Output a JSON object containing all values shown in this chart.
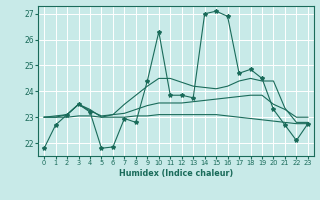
{
  "xlabel": "Humidex (Indice chaleur)",
  "xlim": [
    -0.5,
    23.5
  ],
  "ylim": [
    21.5,
    27.3
  ],
  "yticks": [
    22,
    23,
    24,
    25,
    26,
    27
  ],
  "xticks": [
    0,
    1,
    2,
    3,
    4,
    5,
    6,
    7,
    8,
    9,
    10,
    11,
    12,
    13,
    14,
    15,
    16,
    17,
    18,
    19,
    20,
    21,
    22,
    23
  ],
  "bg_color": "#c8eae8",
  "grid_color": "#ffffff",
  "line_color": "#1a6b5a",
  "lines": [
    {
      "x": [
        0,
        1,
        2,
        3,
        4,
        5,
        6,
        7,
        8,
        9,
        10,
        11,
        12,
        13,
        14,
        15,
        16,
        17,
        18,
        19,
        20,
        21,
        22,
        23
      ],
      "y": [
        21.8,
        22.7,
        23.1,
        23.5,
        23.2,
        21.8,
        21.85,
        22.95,
        22.8,
        24.4,
        26.3,
        23.85,
        23.85,
        23.75,
        27.0,
        27.1,
        26.9,
        24.7,
        24.85,
        24.5,
        23.3,
        22.7,
        22.1,
        22.75
      ],
      "marker": "*",
      "markersize": 3.0,
      "lw": 0.8
    },
    {
      "x": [
        0,
        1,
        2,
        3,
        4,
        5,
        6,
        7,
        8,
        9,
        10,
        11,
        12,
        13,
        14,
        15,
        16,
        17,
        18,
        19,
        20,
        21,
        22,
        23
      ],
      "y": [
        23.0,
        23.0,
        23.0,
        23.05,
        23.05,
        23.0,
        23.0,
        23.0,
        23.05,
        23.05,
        23.1,
        23.1,
        23.1,
        23.1,
        23.1,
        23.1,
        23.05,
        23.0,
        22.95,
        22.9,
        22.85,
        22.8,
        22.75,
        22.75
      ],
      "marker": null,
      "markersize": 0,
      "lw": 0.8
    },
    {
      "x": [
        0,
        1,
        2,
        3,
        4,
        5,
        6,
        7,
        8,
        9,
        10,
        11,
        12,
        13,
        14,
        15,
        16,
        17,
        18,
        19,
        20,
        21,
        22,
        23
      ],
      "y": [
        23.0,
        23.0,
        23.1,
        23.5,
        23.25,
        23.05,
        23.1,
        23.15,
        23.3,
        23.45,
        23.55,
        23.55,
        23.55,
        23.6,
        23.65,
        23.7,
        23.75,
        23.8,
        23.85,
        23.85,
        23.5,
        23.3,
        23.0,
        23.0
      ],
      "marker": null,
      "markersize": 0,
      "lw": 0.8
    },
    {
      "x": [
        0,
        2,
        3,
        4,
        5,
        6,
        7,
        8,
        9,
        10,
        11,
        12,
        13,
        14,
        15,
        16,
        17,
        18,
        19,
        20,
        21,
        22,
        23
      ],
      "y": [
        23.0,
        23.1,
        23.5,
        23.3,
        23.0,
        23.1,
        23.5,
        23.85,
        24.2,
        24.5,
        24.5,
        24.35,
        24.2,
        24.15,
        24.1,
        24.2,
        24.4,
        24.5,
        24.4,
        24.4,
        23.35,
        22.8,
        22.8
      ],
      "marker": null,
      "markersize": 0,
      "lw": 0.8
    }
  ]
}
